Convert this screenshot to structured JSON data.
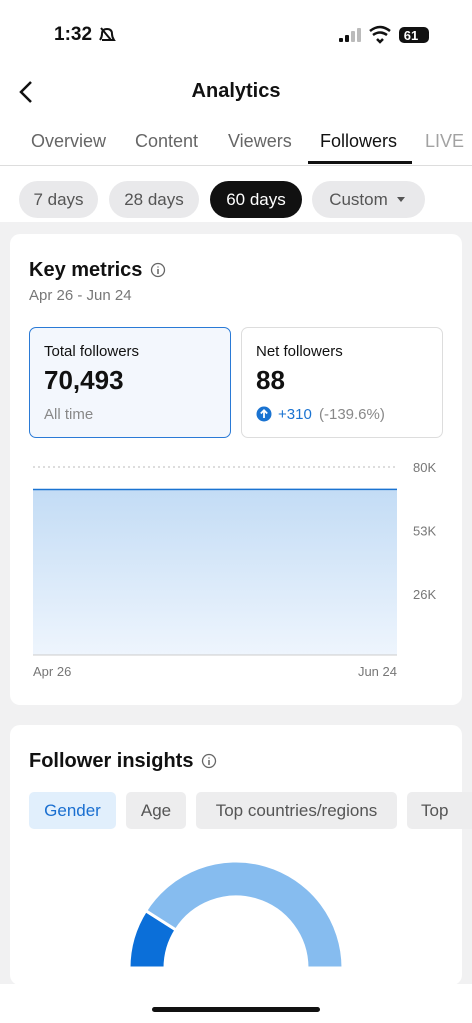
{
  "status_bar": {
    "time": "1:32",
    "battery": "61"
  },
  "header": {
    "title": "Analytics"
  },
  "tabs": [
    "Overview",
    "Content",
    "Viewers",
    "Followers",
    "LIVE"
  ],
  "ranges": [
    "7 days",
    "28 days",
    "60 days",
    "Custom"
  ],
  "key_metrics": {
    "title": "Key metrics",
    "date_range": "Apr 26 - Jun 24",
    "cards": [
      {
        "label": "Total followers",
        "value": "70,493",
        "note": "All time"
      },
      {
        "label": "Net followers",
        "value": "88",
        "change": "+310",
        "change_pct": "(-139.6%)"
      }
    ]
  },
  "follower_chart": {
    "type": "area",
    "x": [
      "Apr 26",
      "Jun 24"
    ],
    "values": [
      70405,
      70493
    ],
    "color": "#1a73d1",
    "ylim": [
      0,
      80000
    ],
    "yticks": [
      {
        "value": 80000,
        "label": "80K"
      },
      {
        "value": 53000,
        "label": "53K"
      },
      {
        "value": 26000,
        "label": "26K"
      }
    ],
    "grid": true
  },
  "insights": {
    "title": "Follower insights",
    "tabs": [
      "Gender",
      "Age",
      "Top countries/regions",
      "Top cities"
    ]
  },
  "gender_chart": {
    "type": "pie",
    "values": [
      18,
      82
    ],
    "colors": [
      "#0b6fd9",
      "#86bcef"
    ]
  }
}
